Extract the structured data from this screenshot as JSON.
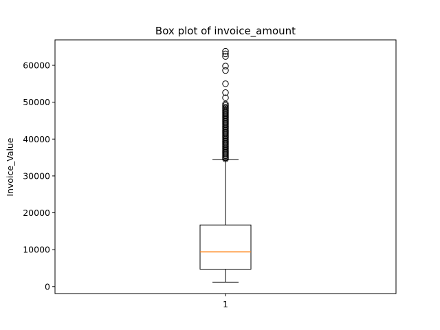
{
  "chart_data": {
    "type": "box",
    "title": "Box plot of invoice_amount",
    "xlabel": "",
    "ylabel": "Invoice_Value",
    "categories": [
      "1"
    ],
    "ylim": [
      -1900,
      66900
    ],
    "yticks": [
      0,
      10000,
      20000,
      30000,
      40000,
      50000,
      60000
    ],
    "ytick_labels": [
      "0",
      "10000",
      "20000",
      "30000",
      "40000",
      "50000",
      "60000"
    ],
    "grid": false,
    "box": {
      "whisker_low": 1200,
      "q1": 4700,
      "median": 9400,
      "q3": 16700,
      "whisker_high": 34400
    },
    "outliers": [
      34600,
      34900,
      35200,
      35500,
      35800,
      36100,
      36400,
      36700,
      37000,
      37300,
      37600,
      37900,
      38200,
      38500,
      38800,
      39100,
      39400,
      39700,
      40000,
      40300,
      40600,
      40900,
      41200,
      41500,
      41800,
      42100,
      42400,
      42700,
      43000,
      43300,
      43600,
      43900,
      44200,
      44500,
      44800,
      45100,
      45400,
      45700,
      46000,
      46300,
      46600,
      46900,
      47200,
      47500,
      47800,
      48100,
      48400,
      48700,
      49100,
      49500,
      51200,
      52600,
      55000,
      58600,
      59800,
      62400,
      63100,
      63800
    ],
    "colors": {
      "median": "#ff7f0e",
      "box": "#000000",
      "frame": "#000000"
    }
  }
}
